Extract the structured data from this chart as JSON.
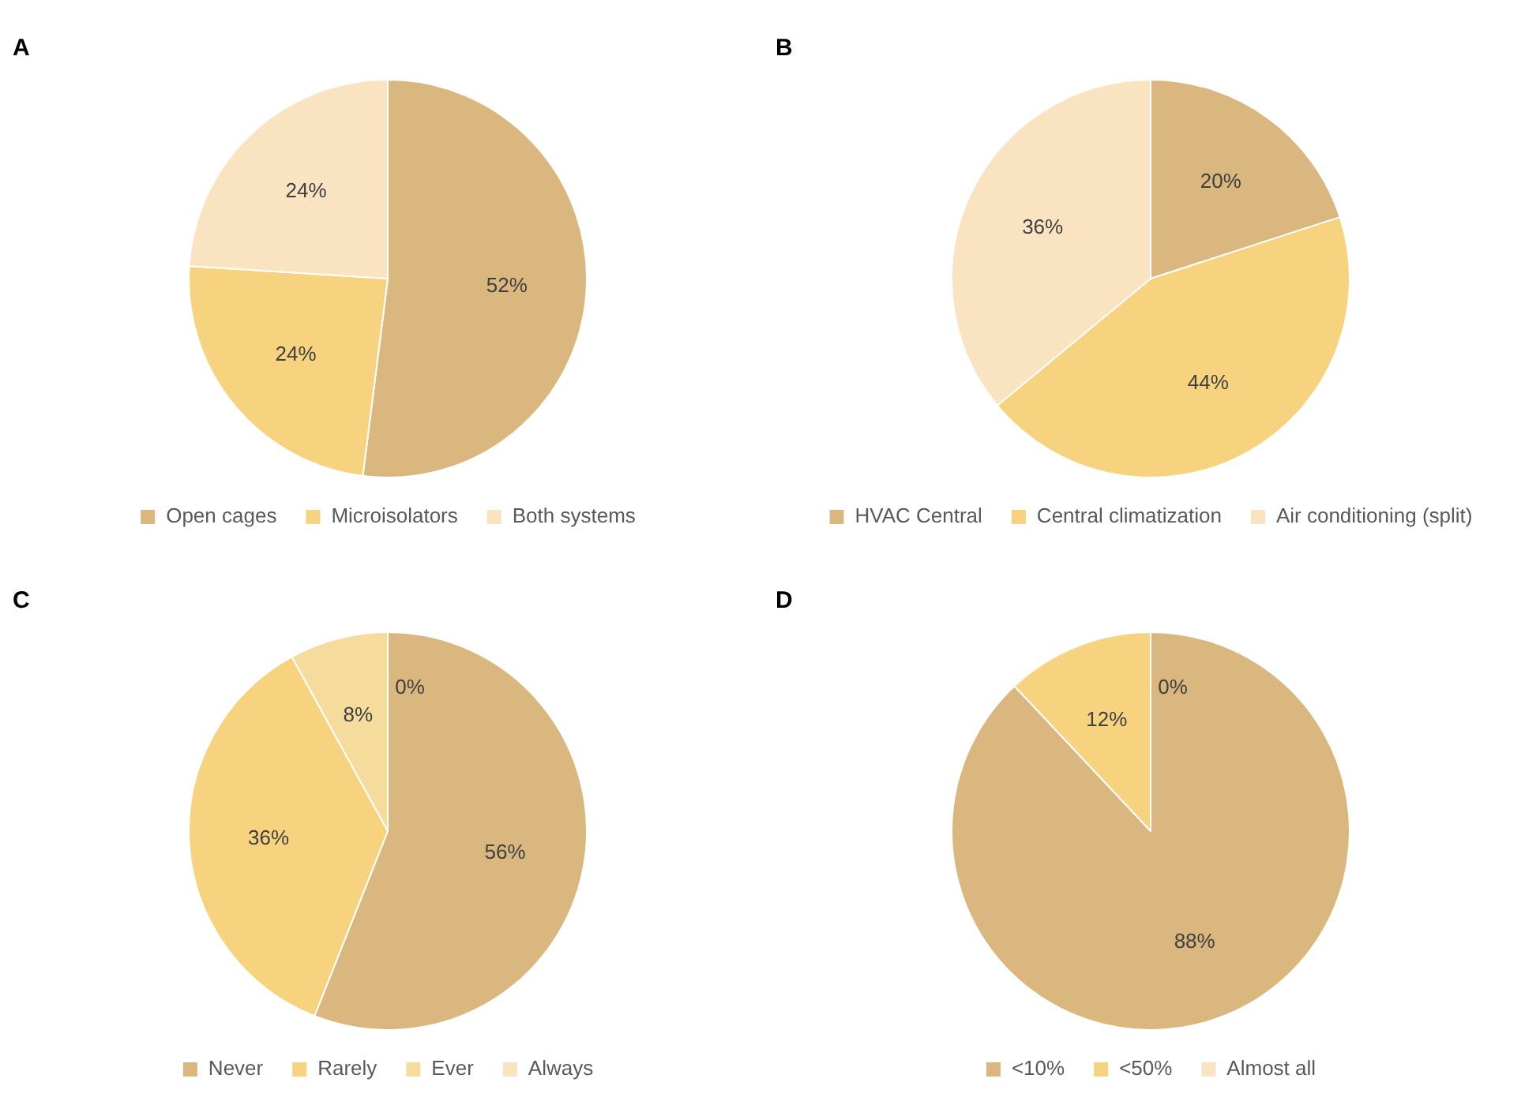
{
  "chart_data": [
    {
      "type": "pie",
      "title": "A",
      "categories": [
        "Open cages",
        "Microisolators",
        "Both systems"
      ],
      "values": [
        52,
        24,
        24
      ],
      "value_labels": [
        "52%",
        "24%",
        "24%"
      ],
      "colors": [
        "#d9b77e",
        "#f7d37f",
        "#f9e3c0"
      ],
      "legend": "bottom"
    },
    {
      "type": "pie",
      "title": "B",
      "categories": [
        "HVAC Central",
        "Central climatization",
        "Air conditioning (split)"
      ],
      "values": [
        20,
        44,
        36
      ],
      "value_labels": [
        "20%",
        "44%",
        "36%"
      ],
      "colors": [
        "#d9b77e",
        "#f7d37f",
        "#f9e3c0"
      ],
      "legend": "bottom"
    },
    {
      "type": "pie",
      "title": "C",
      "categories": [
        "Never",
        "Rarely",
        "Ever",
        "Always"
      ],
      "values": [
        56,
        36,
        8,
        0
      ],
      "value_labels": [
        "56%",
        "36%",
        "8%",
        "0%"
      ],
      "colors": [
        "#d9b77e",
        "#f7d37f",
        "#f5dc9c",
        "#f9e3c0"
      ],
      "legend": "bottom"
    },
    {
      "type": "pie",
      "title": "D",
      "categories": [
        "<10%",
        "<50%",
        "Almost all"
      ],
      "values": [
        88,
        12,
        0
      ],
      "value_labels": [
        "88%",
        "12%",
        "0%"
      ],
      "colors": [
        "#d9b77e",
        "#f7d37f",
        "#f9e3c0"
      ],
      "legend": "bottom"
    }
  ]
}
